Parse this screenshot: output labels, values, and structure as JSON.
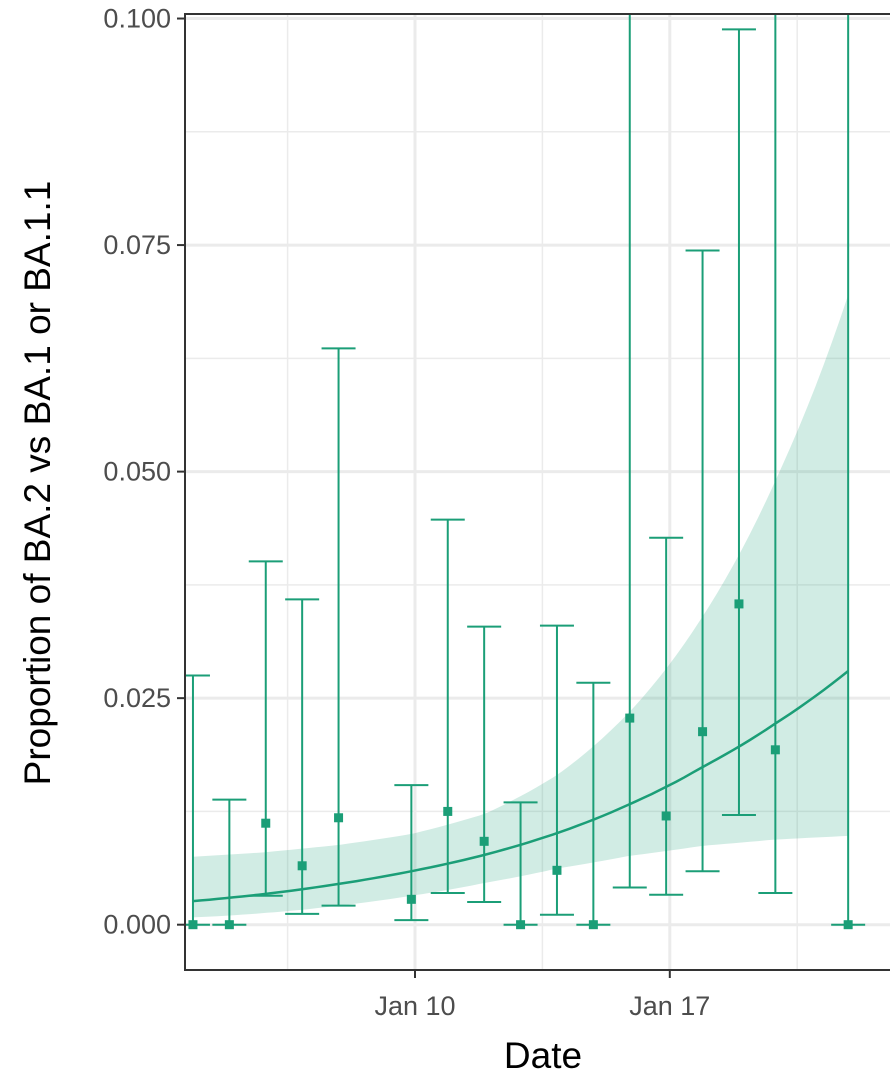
{
  "chart_data": {
    "type": "scatter",
    "xlabel": "Date",
    "ylabel": "Proportion of BA.2 vs BA.1 or BA.1.1",
    "ylim": [
      -0.005,
      0.1005
    ],
    "x_ticks": [
      {
        "label": "Jan 10",
        "day": 10
      },
      {
        "label": "Jan 17",
        "day": 17
      }
    ],
    "y_ticks": [
      {
        "label": "0.000",
        "value": 0.0
      },
      {
        "label": "0.025",
        "value": 0.025
      },
      {
        "label": "0.050",
        "value": 0.05
      },
      {
        "label": "0.075",
        "value": 0.075
      },
      {
        "label": "0.100",
        "value": 0.1
      }
    ],
    "grid": true,
    "series": [
      {
        "points": [
          {
            "day": 3.9,
            "y": 0.0,
            "lo": 0.0,
            "hi": 0.0275
          },
          {
            "day": 4.9,
            "y": 0.0,
            "lo": 0.0,
            "hi": 0.0138
          },
          {
            "day": 5.9,
            "y": 0.0112,
            "lo": 0.0032,
            "hi": 0.0401
          },
          {
            "day": 6.9,
            "y": 0.0065,
            "lo": 0.0012,
            "hi": 0.0359
          },
          {
            "day": 7.9,
            "y": 0.0118,
            "lo": 0.0021,
            "hi": 0.0636
          },
          {
            "day": 9.9,
            "y": 0.0028,
            "lo": 0.0005,
            "hi": 0.0154
          },
          {
            "day": 10.9,
            "y": 0.0125,
            "lo": 0.0035,
            "hi": 0.0447
          },
          {
            "day": 11.9,
            "y": 0.0092,
            "lo": 0.0025,
            "hi": 0.0329
          },
          {
            "day": 12.9,
            "y": 0.0,
            "lo": 0.0,
            "hi": 0.0135
          },
          {
            "day": 13.9,
            "y": 0.006,
            "lo": 0.0011,
            "hi": 0.033
          },
          {
            "day": 14.9,
            "y": 0.0,
            "lo": 0.0,
            "hi": 0.0267
          },
          {
            "day": 15.9,
            "y": 0.0228,
            "lo": 0.0041,
            "hi": 0.1011
          },
          {
            "day": 16.9,
            "y": 0.012,
            "lo": 0.0033,
            "hi": 0.0427
          },
          {
            "day": 17.9,
            "y": 0.0213,
            "lo": 0.0059,
            "hi": 0.0744
          },
          {
            "day": 18.9,
            "y": 0.0354,
            "lo": 0.0121,
            "hi": 0.0988
          },
          {
            "day": 19.9,
            "y": 0.0193,
            "lo": 0.0035,
            "hi": 0.1012
          },
          {
            "day": 21.9,
            "y": 0.0,
            "lo": 0.0,
            "hi": 0.1011
          }
        ]
      }
    ],
    "fit": {
      "days": [
        3.9,
        5.9,
        7.9,
        9.9,
        11.9,
        13.9,
        15.9,
        17.9,
        19.9,
        21.9
      ],
      "values": [
        0.0026,
        0.0034,
        0.0045,
        0.0059,
        0.0077,
        0.0101,
        0.0133,
        0.0174,
        0.0222,
        0.028
      ],
      "lower": [
        0.0008,
        0.0013,
        0.0021,
        0.0032,
        0.0046,
        0.0062,
        0.0076,
        0.0087,
        0.0094,
        0.0098
      ],
      "upper": [
        0.0075,
        0.008,
        0.0088,
        0.01,
        0.0122,
        0.0165,
        0.0235,
        0.034,
        0.049,
        0.0695
      ]
    },
    "colors": {
      "series": "#1b9e77",
      "ribbon": "#1b9e77",
      "grid": "#ebebeb",
      "panel_border": "#333333",
      "tick_text": "#4d4d4d"
    }
  }
}
